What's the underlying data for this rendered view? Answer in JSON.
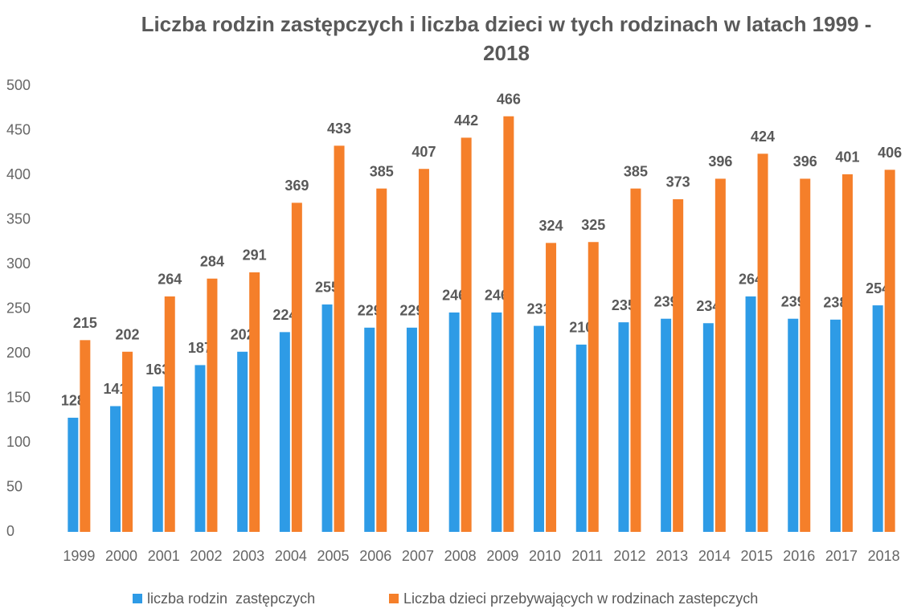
{
  "chart_data": {
    "type": "bar",
    "title": "Liczba rodzin zastępczych i liczba dzieci w tych rodzinach w latach 1999 - 2018",
    "categories": [
      "1999",
      "2000",
      "2001",
      "2002",
      "2003",
      "2004",
      "2005",
      "2006",
      "2007",
      "2008",
      "2009",
      "2010",
      "2011",
      "2012",
      "2013",
      "2014",
      "2015",
      "2016",
      "2017",
      "2018"
    ],
    "series": [
      {
        "name": "liczba rodzin  zastępczych",
        "color": "#2e9be6",
        "values": [
          128,
          141,
          163,
          187,
          202,
          224,
          255,
          229,
          229,
          246,
          246,
          231,
          210,
          235,
          239,
          234,
          264,
          239,
          238,
          254
        ]
      },
      {
        "name": "Liczba dzieci przebywających w rodzinach zastepczych",
        "color": "#f57f2a",
        "values": [
          215,
          202,
          264,
          284,
          291,
          369,
          433,
          385,
          407,
          442,
          466,
          324,
          325,
          385,
          373,
          396,
          424,
          396,
          401,
          406
        ]
      }
    ],
    "ylim": [
      0,
      500
    ],
    "yticks": [
      0,
      50,
      100,
      150,
      200,
      250,
      300,
      350,
      400,
      450,
      500
    ],
    "grid": false,
    "legend": "bottom"
  }
}
